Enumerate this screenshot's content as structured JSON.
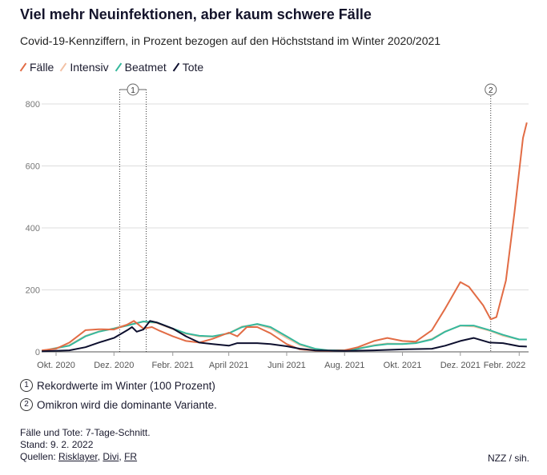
{
  "chart_data": {
    "type": "line",
    "title": "Viel mehr Neuinfektionen, aber kaum schwere Fälle",
    "subtitle": "Covid-19-Kennziffern, in Prozent bezogen auf den Höchststand im Winter 2020/2021",
    "ylim": [
      0,
      800
    ],
    "yticks": [
      0,
      200,
      400,
      600,
      800
    ],
    "grid": true,
    "legend_position": "top-left",
    "xticks": [
      {
        "date": "2020-10-01",
        "label": "Okt. 2020"
      },
      {
        "date": "2020-12-01",
        "label": "Dez. 2020"
      },
      {
        "date": "2021-02-01",
        "label": "Febr. 2021"
      },
      {
        "date": "2021-04-01",
        "label": "April 2021"
      },
      {
        "date": "2021-06-01",
        "label": "Juni 2021"
      },
      {
        "date": "2021-08-01",
        "label": "Aug. 2021"
      },
      {
        "date": "2021-10-01",
        "label": "Okt. 2021"
      },
      {
        "date": "2021-12-01",
        "label": "Dez. 2021"
      },
      {
        "date": "2022-02-01",
        "label": "Febr. 2022"
      }
    ],
    "series": [
      {
        "name": "Fälle",
        "color": "#e26c45",
        "points": [
          [
            "2020-09-16",
            5
          ],
          [
            "2020-10-01",
            10
          ],
          [
            "2020-10-15",
            30
          ],
          [
            "2020-11-01",
            70
          ],
          [
            "2020-11-15",
            73
          ],
          [
            "2020-12-01",
            72
          ],
          [
            "2020-12-15",
            88
          ],
          [
            "2020-12-22",
            100
          ],
          [
            "2021-01-01",
            75
          ],
          [
            "2021-01-10",
            80
          ],
          [
            "2021-01-18",
            68
          ],
          [
            "2021-02-01",
            50
          ],
          [
            "2021-02-15",
            35
          ],
          [
            "2021-03-01",
            30
          ],
          [
            "2021-03-15",
            42
          ],
          [
            "2021-04-01",
            62
          ],
          [
            "2021-04-10",
            50
          ],
          [
            "2021-04-20",
            80
          ],
          [
            "2021-05-01",
            80
          ],
          [
            "2021-05-15",
            60
          ],
          [
            "2021-06-01",
            25
          ],
          [
            "2021-06-15",
            8
          ],
          [
            "2021-07-01",
            4
          ],
          [
            "2021-07-15",
            3
          ],
          [
            "2021-08-01",
            5
          ],
          [
            "2021-08-15",
            15
          ],
          [
            "2021-09-01",
            35
          ],
          [
            "2021-09-15",
            45
          ],
          [
            "2021-10-01",
            35
          ],
          [
            "2021-10-15",
            33
          ],
          [
            "2021-11-01",
            70
          ],
          [
            "2021-11-15",
            140
          ],
          [
            "2021-12-01",
            225
          ],
          [
            "2021-12-10",
            210
          ],
          [
            "2021-12-25",
            150
          ],
          [
            "2022-01-02",
            105
          ],
          [
            "2022-01-08",
            112
          ],
          [
            "2022-01-18",
            230
          ],
          [
            "2022-01-27",
            450
          ],
          [
            "2022-02-05",
            690
          ],
          [
            "2022-02-09",
            740
          ]
        ]
      },
      {
        "name": "Intensiv",
        "color": "#f3c2a6",
        "points": [
          [
            "2020-09-16",
            3
          ],
          [
            "2020-10-15",
            22
          ],
          [
            "2020-11-01",
            52
          ],
          [
            "2020-11-15",
            66
          ],
          [
            "2020-12-01",
            76
          ],
          [
            "2020-12-15",
            88
          ],
          [
            "2021-01-01",
            97
          ],
          [
            "2021-01-15",
            93
          ],
          [
            "2021-02-01",
            73
          ],
          [
            "2021-02-15",
            58
          ],
          [
            "2021-03-01",
            50
          ],
          [
            "2021-03-15",
            49
          ],
          [
            "2021-04-01",
            60
          ],
          [
            "2021-04-15",
            82
          ],
          [
            "2021-05-01",
            88
          ],
          [
            "2021-05-15",
            76
          ],
          [
            "2021-06-01",
            45
          ],
          [
            "2021-06-15",
            22
          ],
          [
            "2021-07-01",
            9
          ],
          [
            "2021-07-15",
            5
          ],
          [
            "2021-08-01",
            6
          ],
          [
            "2021-08-15",
            11
          ],
          [
            "2021-09-01",
            22
          ],
          [
            "2021-09-15",
            27
          ],
          [
            "2021-10-01",
            26
          ],
          [
            "2021-10-15",
            29
          ],
          [
            "2021-11-01",
            42
          ],
          [
            "2021-11-15",
            66
          ],
          [
            "2021-12-01",
            84
          ],
          [
            "2021-12-15",
            82
          ],
          [
            "2022-01-01",
            68
          ],
          [
            "2022-01-15",
            52
          ],
          [
            "2022-02-01",
            40
          ],
          [
            "2022-02-09",
            40
          ]
        ]
      },
      {
        "name": "Beatmet",
        "color": "#35b89c",
        "points": [
          [
            "2020-09-16",
            3
          ],
          [
            "2020-10-15",
            20
          ],
          [
            "2020-11-01",
            50
          ],
          [
            "2020-11-15",
            65
          ],
          [
            "2020-12-01",
            75
          ],
          [
            "2020-12-15",
            85
          ],
          [
            "2021-01-01",
            98
          ],
          [
            "2021-01-15",
            95
          ],
          [
            "2021-02-01",
            75
          ],
          [
            "2021-02-15",
            60
          ],
          [
            "2021-03-01",
            52
          ],
          [
            "2021-03-15",
            50
          ],
          [
            "2021-04-01",
            60
          ],
          [
            "2021-04-15",
            80
          ],
          [
            "2021-05-01",
            90
          ],
          [
            "2021-05-15",
            80
          ],
          [
            "2021-06-01",
            50
          ],
          [
            "2021-06-15",
            25
          ],
          [
            "2021-07-01",
            10
          ],
          [
            "2021-07-15",
            5
          ],
          [
            "2021-08-01",
            5
          ],
          [
            "2021-08-15",
            10
          ],
          [
            "2021-09-01",
            20
          ],
          [
            "2021-09-15",
            25
          ],
          [
            "2021-10-01",
            25
          ],
          [
            "2021-10-15",
            28
          ],
          [
            "2021-11-01",
            40
          ],
          [
            "2021-11-15",
            65
          ],
          [
            "2021-12-01",
            85
          ],
          [
            "2021-12-15",
            85
          ],
          [
            "2022-01-01",
            70
          ],
          [
            "2022-01-15",
            55
          ],
          [
            "2022-02-01",
            40
          ],
          [
            "2022-02-09",
            40
          ]
        ]
      },
      {
        "name": "Tote",
        "color": "#0d0f2e",
        "points": [
          [
            "2020-09-16",
            2
          ],
          [
            "2020-10-15",
            5
          ],
          [
            "2020-11-01",
            15
          ],
          [
            "2020-11-15",
            30
          ],
          [
            "2020-12-01",
            45
          ],
          [
            "2020-12-15",
            70
          ],
          [
            "2020-12-20",
            80
          ],
          [
            "2020-12-25",
            65
          ],
          [
            "2021-01-01",
            72
          ],
          [
            "2021-01-08",
            100
          ],
          [
            "2021-01-15",
            95
          ],
          [
            "2021-02-01",
            75
          ],
          [
            "2021-02-15",
            50
          ],
          [
            "2021-03-01",
            30
          ],
          [
            "2021-03-15",
            25
          ],
          [
            "2021-04-01",
            20
          ],
          [
            "2021-04-10",
            28
          ],
          [
            "2021-05-01",
            28
          ],
          [
            "2021-05-15",
            25
          ],
          [
            "2021-06-01",
            18
          ],
          [
            "2021-06-15",
            10
          ],
          [
            "2021-07-01",
            5
          ],
          [
            "2021-08-01",
            3
          ],
          [
            "2021-09-01",
            5
          ],
          [
            "2021-10-01",
            8
          ],
          [
            "2021-11-01",
            10
          ],
          [
            "2021-11-15",
            20
          ],
          [
            "2021-12-01",
            35
          ],
          [
            "2021-12-15",
            45
          ],
          [
            "2022-01-01",
            30
          ],
          [
            "2022-01-15",
            28
          ],
          [
            "2022-02-01",
            18
          ],
          [
            "2022-02-09",
            17
          ]
        ]
      }
    ],
    "annotations": [
      {
        "label": "1",
        "start": "2020-12-07",
        "end": "2021-01-04"
      },
      {
        "label": "2",
        "date": "2022-01-02"
      }
    ]
  },
  "notes": [
    {
      "num": "1",
      "text": "Rekordwerte im Winter (100 Prozent)"
    },
    {
      "num": "2",
      "text": "Omikron wird die dominante Variante."
    }
  ],
  "footer": {
    "line1": "Fälle und Tote: 7-Tage-Schnitt.",
    "line2": "Stand: 9. 2. 2022",
    "sources_label": "Quellen:",
    "sources": [
      "Risklayer",
      "Divi",
      "FR"
    ],
    "credit": "NZZ / sih."
  }
}
